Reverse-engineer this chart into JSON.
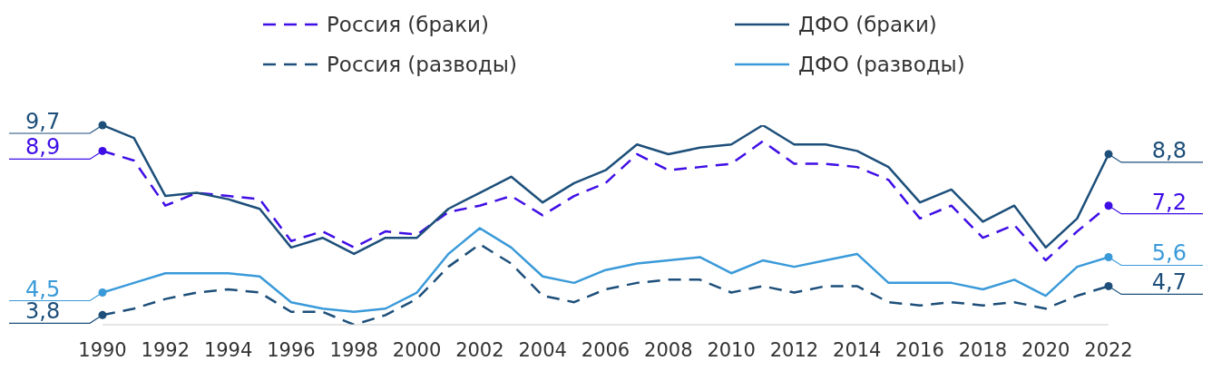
{
  "chart_data": {
    "type": "line",
    "x": [
      1990,
      1991,
      1992,
      1993,
      1994,
      1995,
      1996,
      1997,
      1998,
      1999,
      2000,
      2001,
      2002,
      2003,
      2004,
      2005,
      2006,
      2007,
      2008,
      2009,
      2010,
      2011,
      2012,
      2013,
      2014,
      2015,
      2016,
      2017,
      2018,
      2019,
      2020,
      2021,
      2022
    ],
    "xlim": [
      1990,
      2022
    ],
    "xticks": [
      1990,
      1992,
      1994,
      1996,
      1998,
      2000,
      2002,
      2004,
      2006,
      2008,
      2010,
      2012,
      2014,
      2016,
      2018,
      2020,
      2022
    ],
    "tick_labels": "x",
    "legend": "top",
    "grid": false,
    "series": [
      {
        "name": "Россия (браки)",
        "color": "#3f0ee6",
        "line_style": "dashed",
        "values": [
          8.9,
          8.6,
          7.2,
          7.6,
          7.5,
          7.4,
          6.1,
          6.4,
          5.9,
          6.4,
          6.3,
          7.0,
          7.2,
          7.5,
          6.9,
          7.5,
          7.9,
          8.8,
          8.3,
          8.4,
          8.5,
          9.2,
          8.5,
          8.5,
          8.4,
          8.0,
          6.8,
          7.2,
          6.2,
          6.6,
          5.5,
          6.4,
          7.2
        ],
        "value_labels": [
          "8,9",
          null,
          null,
          null,
          null,
          null,
          null,
          null,
          null,
          null,
          null,
          null,
          null,
          null,
          null,
          null,
          null,
          null,
          null,
          null,
          null,
          null,
          null,
          null,
          null,
          null,
          null,
          null,
          null,
          null,
          null,
          null,
          "7,2"
        ]
      },
      {
        "name": "ДФО (браки)",
        "color": "#1d4f7a",
        "line_style": "solid",
        "values": [
          9.7,
          9.3,
          7.5,
          7.6,
          7.4,
          7.1,
          5.9,
          6.2,
          5.7,
          6.2,
          6.2,
          7.1,
          7.6,
          8.1,
          7.3,
          7.9,
          8.3,
          9.1,
          8.8,
          9.0,
          9.1,
          9.7,
          9.1,
          9.1,
          8.9,
          8.4,
          7.3,
          7.7,
          6.7,
          7.2,
          5.9,
          6.8,
          8.8
        ],
        "value_labels": [
          "9,7",
          null,
          null,
          null,
          null,
          null,
          null,
          null,
          null,
          null,
          null,
          null,
          null,
          null,
          null,
          null,
          null,
          null,
          null,
          null,
          null,
          null,
          null,
          null,
          null,
          null,
          null,
          null,
          null,
          null,
          null,
          null,
          "8,8"
        ]
      },
      {
        "name": "Россия (разводы)",
        "color": "#1d4f7a",
        "line_style": "dashed",
        "values": [
          3.8,
          4.0,
          4.3,
          4.5,
          4.6,
          4.5,
          3.9,
          3.9,
          3.5,
          3.8,
          4.3,
          5.3,
          6.0,
          5.4,
          4.4,
          4.2,
          4.6,
          4.8,
          4.9,
          4.9,
          4.5,
          4.7,
          4.5,
          4.7,
          4.7,
          4.2,
          4.1,
          4.2,
          4.1,
          4.2,
          4.0,
          4.4,
          4.7
        ],
        "value_labels": [
          "3,8",
          null,
          null,
          null,
          null,
          null,
          null,
          null,
          null,
          null,
          null,
          null,
          null,
          null,
          null,
          null,
          null,
          null,
          null,
          null,
          null,
          null,
          null,
          null,
          null,
          null,
          null,
          null,
          null,
          null,
          null,
          null,
          "4,7"
        ]
      },
      {
        "name": "ДФО (разводы)",
        "color": "#3a9ad9",
        "line_style": "solid",
        "values": [
          4.5,
          4.8,
          5.1,
          5.1,
          5.1,
          5.0,
          4.2,
          4.0,
          3.9,
          4.0,
          4.5,
          5.7,
          6.5,
          5.9,
          5.0,
          4.8,
          5.2,
          5.4,
          5.5,
          5.6,
          5.1,
          5.5,
          5.3,
          5.5,
          5.7,
          4.8,
          4.8,
          4.8,
          4.6,
          4.9,
          4.4,
          5.3,
          5.6
        ],
        "value_labels": [
          "4,5",
          null,
          null,
          null,
          null,
          null,
          null,
          null,
          null,
          null,
          null,
          null,
          null,
          null,
          null,
          null,
          null,
          null,
          null,
          null,
          null,
          null,
          null,
          null,
          null,
          null,
          null,
          null,
          null,
          null,
          null,
          null,
          "5,6"
        ]
      }
    ]
  }
}
